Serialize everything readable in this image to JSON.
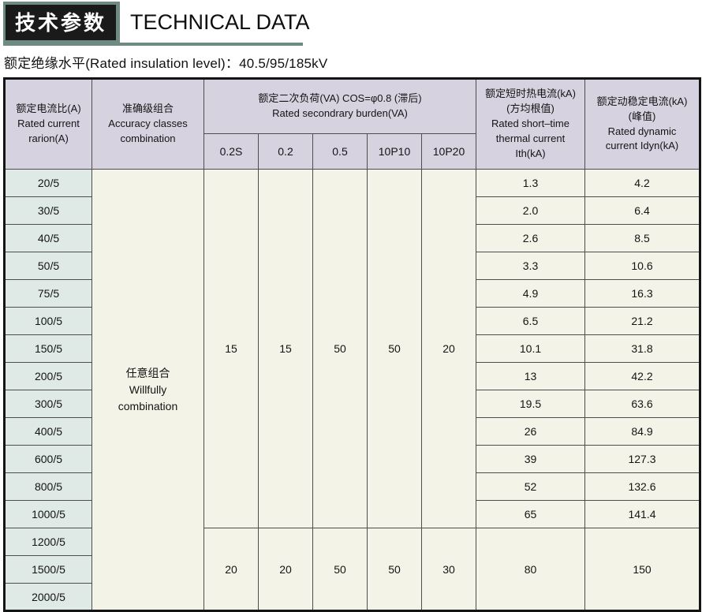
{
  "page": {
    "tag_cn": "技术参数",
    "title_en": "TECHNICAL DATA",
    "subtitle": "额定绝缘水平(Rated insulation level)：40.5/95/185kV"
  },
  "colors": {
    "teal_accent": "#6e8b83",
    "tag_background": "#1a1a1a",
    "table_header_background": "#d6d2e0",
    "ratio_column_background": "#dfe9e5",
    "data_cell_background": "#f3f3e8",
    "grid_line": "#4d4d4d"
  },
  "table": {
    "headers": {
      "ratio": "额定电流比(A)\nRated current\nrarion(A)",
      "accuracy": "准确级组合\nAccuracy classes\ncombination",
      "burden_group": "额定二次负荷(VA) COS=φ0.8 (滞后)\nRated secondrary burden(VA)",
      "burden_cols": [
        "0.2S",
        "0.2",
        "0.5",
        "10P10",
        "10P20"
      ],
      "thermal": "额定短时热电流(kA)\n(方均根值)\nRated short–time\nthermal current\nIth(kA)",
      "dynamic": "额定动稳定电流(kA)\n(峰值)\nRated dynamic\ncurrent Idyn(kA)"
    },
    "accuracy_value": "任意组合\nWillfully\ncombination",
    "groups": [
      {
        "burden": [
          "15",
          "15",
          "50",
          "50",
          "20"
        ],
        "rows": [
          {
            "ratio": "20/5",
            "ith": "1.3",
            "idyn": "4.2"
          },
          {
            "ratio": "30/5",
            "ith": "2.0",
            "idyn": "6.4"
          },
          {
            "ratio": "40/5",
            "ith": "2.6",
            "idyn": "8.5"
          },
          {
            "ratio": "50/5",
            "ith": "3.3",
            "idyn": "10.6"
          },
          {
            "ratio": "75/5",
            "ith": "4.9",
            "idyn": "16.3"
          },
          {
            "ratio": "100/5",
            "ith": "6.5",
            "idyn": "21.2"
          },
          {
            "ratio": "150/5",
            "ith": "10.1",
            "idyn": "31.8"
          },
          {
            "ratio": "200/5",
            "ith": "13",
            "idyn": "42.2"
          },
          {
            "ratio": "300/5",
            "ith": "19.5",
            "idyn": "63.6"
          },
          {
            "ratio": "400/5",
            "ith": "26",
            "idyn": "84.9"
          },
          {
            "ratio": "600/5",
            "ith": "39",
            "idyn": "127.3"
          },
          {
            "ratio": "800/5",
            "ith": "52",
            "idyn": "132.6"
          },
          {
            "ratio": "1000/5",
            "ith": "65",
            "idyn": "141.4"
          }
        ]
      },
      {
        "burden": [
          "20",
          "20",
          "50",
          "50",
          "30"
        ],
        "ith_merged": "80",
        "idyn_merged": "150",
        "rows": [
          {
            "ratio": "1200/5"
          },
          {
            "ratio": "1500/5"
          },
          {
            "ratio": "2000/5"
          }
        ]
      }
    ]
  }
}
